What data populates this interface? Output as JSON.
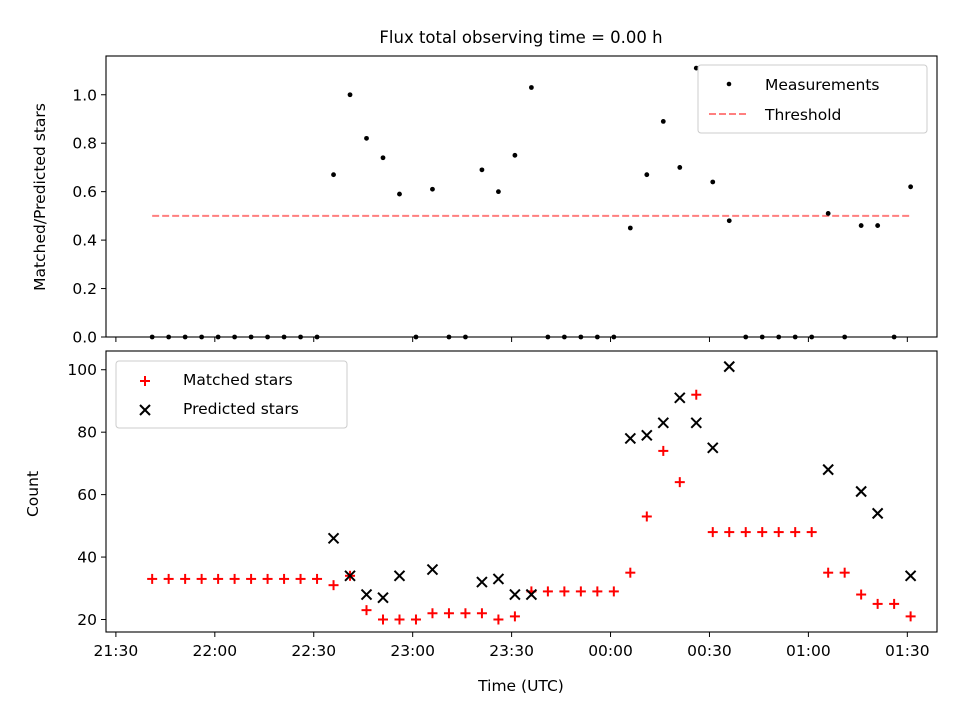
{
  "figure_title": "Flux total observing time = 0.00 h",
  "chart_data": [
    {
      "type": "scatter",
      "ylabel": "Matched/Predicted stars",
      "xlabel": "",
      "ylim": [
        0,
        1.16
      ],
      "yticks": [
        0.0,
        0.2,
        0.4,
        0.6,
        0.8,
        1.0
      ],
      "ytick_labels": [
        "0.0",
        "0.2",
        "0.4",
        "0.6",
        "0.8",
        "1.0"
      ],
      "legend_position": "top-right",
      "series": [
        {
          "name": "Measurements",
          "marker": "dot",
          "color": "#000000",
          "x": [
            "21:41",
            "21:46",
            "21:51",
            "21:56",
            "22:01",
            "22:06",
            "22:11",
            "22:16",
            "22:21",
            "22:26",
            "22:31",
            "22:36",
            "22:41",
            "22:46",
            "22:51",
            "22:56",
            "23:01",
            "23:06",
            "23:11",
            "23:16",
            "23:21",
            "23:26",
            "23:31",
            "23:36",
            "23:41",
            "23:46",
            "23:51",
            "23:56",
            "24:01",
            "24:06",
            "24:11",
            "24:16",
            "24:21",
            "24:26",
            "24:31",
            "24:36",
            "24:41",
            "24:46",
            "24:51",
            "24:56",
            "25:01",
            "25:06",
            "25:11",
            "25:16",
            "25:21",
            "25:26",
            "25:31"
          ],
          "y": [
            0,
            0,
            0,
            0,
            0,
            0,
            0,
            0,
            0,
            0,
            0,
            0.67,
            1.0,
            0.82,
            0.74,
            0.59,
            0,
            0.61,
            0,
            0,
            0.69,
            0.6,
            0.75,
            1.03,
            0,
            0,
            0,
            0,
            0,
            0.45,
            0.67,
            0.89,
            0.7,
            1.11,
            0.64,
            0.48,
            0,
            0,
            0,
            0,
            0,
            0.51,
            0,
            0.46,
            0.46,
            0,
            0.62
          ]
        },
        {
          "name": "Threshold",
          "line": "dashed",
          "color": "#ff7f7f",
          "x": [
            "21:41",
            "25:31"
          ],
          "y": [
            0.5,
            0.5
          ]
        }
      ]
    },
    {
      "type": "scatter",
      "ylabel": "Count",
      "xlabel": "Time (UTC)",
      "ylim": [
        16,
        106
      ],
      "yticks": [
        20,
        40,
        60,
        80,
        100
      ],
      "ytick_labels": [
        "20",
        "40",
        "60",
        "80",
        "100"
      ],
      "xlim": [
        "21:27",
        "25:39"
      ],
      "xticks": [
        "21:30",
        "22:00",
        "22:30",
        "23:00",
        "23:30",
        "24:00",
        "24:30",
        "25:00",
        "25:30"
      ],
      "xtick_labels": [
        "21:30",
        "22:00",
        "22:30",
        "23:00",
        "23:30",
        "00:00",
        "00:30",
        "01:00",
        "01:30"
      ],
      "legend_position": "top-left",
      "series": [
        {
          "name": "Matched stars",
          "marker": "plus",
          "color": "#ff0000",
          "x": [
            "21:41",
            "21:46",
            "21:51",
            "21:56",
            "22:01",
            "22:06",
            "22:11",
            "22:16",
            "22:21",
            "22:26",
            "22:31",
            "22:36",
            "22:41",
            "22:46",
            "22:51",
            "22:56",
            "23:01",
            "23:06",
            "23:11",
            "23:16",
            "23:21",
            "23:26",
            "23:31",
            "23:36",
            "23:41",
            "23:46",
            "23:51",
            "23:56",
            "24:01",
            "24:06",
            "24:11",
            "24:16",
            "24:21",
            "24:26",
            "24:31",
            "24:36",
            "24:41",
            "24:46",
            "24:51",
            "24:56",
            "25:01",
            "25:06",
            "25:11",
            "25:16",
            "25:21",
            "25:26",
            "25:31"
          ],
          "y": [
            33,
            33,
            33,
            33,
            33,
            33,
            33,
            33,
            33,
            33,
            33,
            31,
            34,
            23,
            20,
            20,
            20,
            22,
            22,
            22,
            22,
            20,
            21,
            29,
            29,
            29,
            29,
            29,
            29,
            35,
            53,
            74,
            64,
            92,
            48,
            48,
            48,
            48,
            48,
            48,
            48,
            35,
            35,
            28,
            25,
            25,
            21
          ]
        },
        {
          "name": "Predicted stars",
          "marker": "x",
          "color": "#000000",
          "x": [
            "22:36",
            "22:41",
            "22:46",
            "22:51",
            "22:56",
            "23:06",
            "23:21",
            "23:26",
            "23:31",
            "23:36",
            "24:06",
            "24:11",
            "24:16",
            "24:21",
            "24:26",
            "24:31",
            "24:36",
            "25:06",
            "25:16",
            "25:21",
            "25:31"
          ],
          "y": [
            46,
            34,
            28,
            27,
            34,
            36,
            32,
            33,
            28,
            28,
            78,
            79,
            83,
            91,
            83,
            75,
            101,
            68,
            61,
            54,
            34
          ]
        }
      ]
    }
  ]
}
